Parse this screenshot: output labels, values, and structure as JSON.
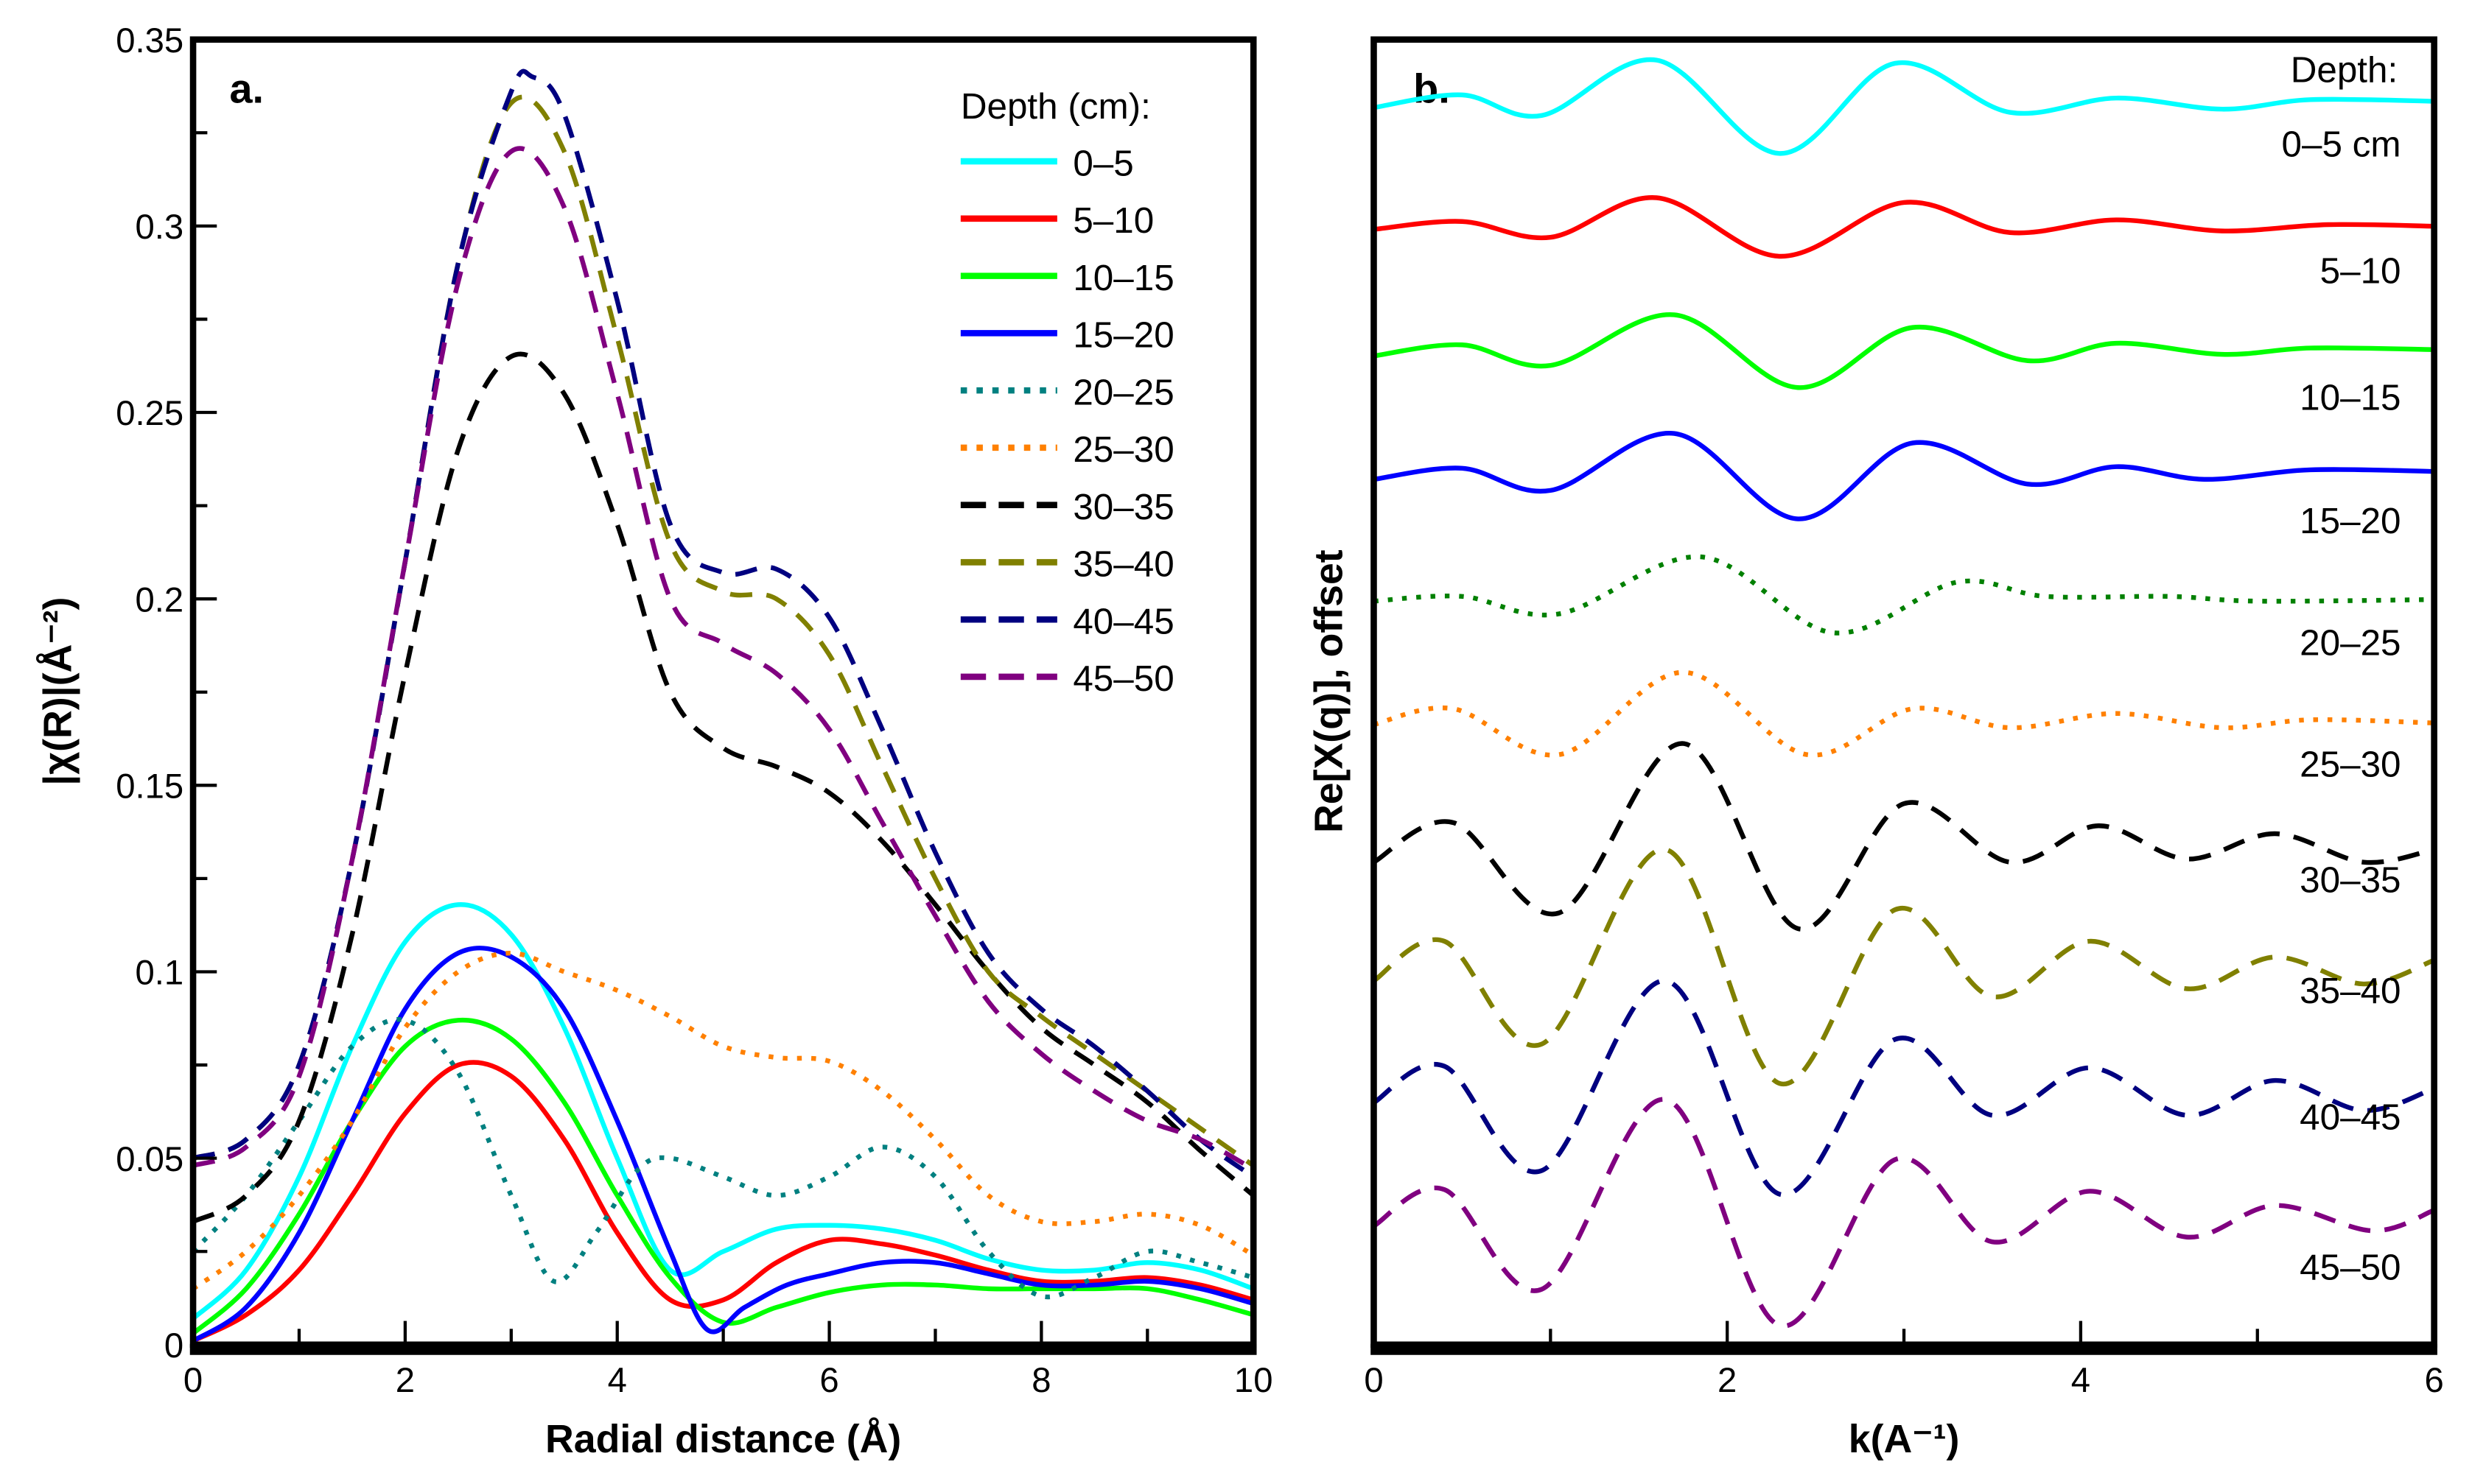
{
  "chart_data": [
    {
      "type": "line",
      "panel_label": "a.",
      "xlabel": "Radial distance (Å)",
      "ylabel": "|χ(R)|(Å⁻²)",
      "xlim": [
        0,
        10
      ],
      "ylim": [
        0,
        0.35
      ],
      "xticks": [
        "0",
        "2",
        "4",
        "6",
        "8",
        "10"
      ],
      "xtick_values": [
        0,
        2,
        4,
        6,
        8,
        10
      ],
      "yticks": [
        "0",
        "0.05",
        "0.1",
        "0.15",
        "0.2",
        "0.25",
        "0.3",
        "0.35"
      ],
      "ytick_values": [
        0,
        0.05,
        0.1,
        0.15,
        0.2,
        0.25,
        0.3,
        0.35
      ],
      "legend_title": "Depth (cm):",
      "legend_position": "top-right",
      "grid": false,
      "series": [
        {
          "name": "0–5",
          "color": "#00ffff",
          "style": "solid",
          "x": [
            0,
            0.5,
            1,
            1.5,
            2,
            2.5,
            3,
            3.5,
            4,
            4.5,
            5,
            5.5,
            6,
            6.5,
            7,
            7.5,
            8,
            8.5,
            9,
            9.5,
            10
          ],
          "y": [
            0.007,
            0.02,
            0.045,
            0.08,
            0.108,
            0.118,
            0.11,
            0.085,
            0.05,
            0.02,
            0.025,
            0.031,
            0.032,
            0.031,
            0.028,
            0.023,
            0.02,
            0.02,
            0.022,
            0.02,
            0.015
          ]
        },
        {
          "name": "5–10",
          "color": "#ff0000",
          "style": "solid",
          "x": [
            0,
            0.5,
            1,
            1.5,
            2,
            2.5,
            3,
            3.5,
            4,
            4.5,
            5,
            5.5,
            6,
            6.5,
            7,
            7.5,
            8,
            8.5,
            9,
            9.5,
            10
          ],
          "y": [
            0.001,
            0.008,
            0.02,
            0.04,
            0.062,
            0.075,
            0.072,
            0.055,
            0.03,
            0.012,
            0.012,
            0.022,
            0.028,
            0.027,
            0.024,
            0.02,
            0.017,
            0.017,
            0.018,
            0.016,
            0.012
          ]
        },
        {
          "name": "10–15",
          "color": "#00ff00",
          "style": "solid",
          "x": [
            0,
            0.5,
            1,
            1.5,
            2,
            2.5,
            3,
            3.5,
            4,
            4.5,
            5,
            5.5,
            6,
            6.5,
            7,
            7.5,
            8,
            8.5,
            9,
            9.5,
            10
          ],
          "y": [
            0.003,
            0.015,
            0.035,
            0.06,
            0.08,
            0.087,
            0.082,
            0.065,
            0.04,
            0.018,
            0.006,
            0.01,
            0.014,
            0.016,
            0.016,
            0.015,
            0.015,
            0.015,
            0.015,
            0.012,
            0.008
          ]
        },
        {
          "name": "15–20",
          "color": "#0000ff",
          "style": "solid",
          "x": [
            0,
            0.5,
            1,
            1.5,
            2,
            2.5,
            3,
            3.5,
            4,
            4.5,
            4.85,
            5.2,
            5.6,
            6,
            6.5,
            7,
            7.5,
            8,
            8.5,
            9,
            9.5,
            10
          ],
          "y": [
            0.001,
            0.01,
            0.03,
            0.06,
            0.09,
            0.105,
            0.104,
            0.09,
            0.06,
            0.025,
            0.004,
            0.01,
            0.016,
            0.019,
            0.022,
            0.022,
            0.019,
            0.016,
            0.016,
            0.017,
            0.015,
            0.011
          ]
        },
        {
          "name": "20–25",
          "color": "#008080",
          "style": "dotted",
          "x": [
            0,
            0.5,
            1,
            1.5,
            2,
            2.5,
            3,
            3.4,
            3.8,
            4.2,
            4.5,
            5,
            5.5,
            6,
            6.5,
            7,
            7.5,
            8,
            8.5,
            9,
            9.5,
            10
          ],
          "y": [
            0.025,
            0.04,
            0.06,
            0.08,
            0.087,
            0.073,
            0.04,
            0.017,
            0.03,
            0.047,
            0.05,
            0.045,
            0.04,
            0.045,
            0.053,
            0.045,
            0.025,
            0.013,
            0.018,
            0.025,
            0.022,
            0.018
          ]
        },
        {
          "name": "25–30",
          "color": "#ff8000",
          "style": "dotted",
          "x": [
            0,
            0.5,
            1,
            1.5,
            2,
            2.5,
            3,
            3.5,
            4,
            4.5,
            5,
            5.5,
            6,
            6.5,
            7,
            7.5,
            8,
            8.5,
            9,
            9.5,
            10
          ],
          "y": [
            0.015,
            0.025,
            0.04,
            0.06,
            0.085,
            0.1,
            0.105,
            0.1,
            0.095,
            0.088,
            0.08,
            0.077,
            0.076,
            0.068,
            0.055,
            0.04,
            0.033,
            0.033,
            0.035,
            0.032,
            0.024
          ]
        },
        {
          "name": "30–35",
          "color": "#000000",
          "style": "dashed",
          "x": [
            0,
            0.5,
            1,
            1.5,
            2,
            2.5,
            3,
            3.5,
            4,
            4.5,
            5,
            5.5,
            6,
            6.5,
            7,
            7.5,
            8,
            8.5,
            9,
            9.5,
            10
          ],
          "y": [
            0.033,
            0.04,
            0.06,
            0.11,
            0.18,
            0.24,
            0.265,
            0.255,
            0.22,
            0.175,
            0.16,
            0.155,
            0.148,
            0.135,
            0.118,
            0.1,
            0.085,
            0.075,
            0.065,
            0.052,
            0.04
          ]
        },
        {
          "name": "35–40",
          "color": "#808000",
          "style": "dashed",
          "x": [
            0,
            0.5,
            1,
            1.5,
            2,
            2.5,
            3,
            3.5,
            4,
            4.5,
            5,
            5.5,
            6,
            6.5,
            7,
            7.5,
            8,
            8.5,
            9,
            9.5,
            10
          ],
          "y": [
            0.05,
            0.055,
            0.075,
            0.13,
            0.21,
            0.29,
            0.333,
            0.32,
            0.27,
            0.215,
            0.202,
            0.2,
            0.185,
            0.155,
            0.125,
            0.1,
            0.088,
            0.078,
            0.068,
            0.058,
            0.048
          ]
        },
        {
          "name": "40–45",
          "color": "#000080",
          "style": "dashed",
          "x": [
            0,
            0.5,
            1,
            1.5,
            2,
            2.5,
            3,
            3.2,
            3.5,
            4,
            4.5,
            5,
            5.5,
            6,
            6.5,
            7,
            7.5,
            8,
            8.5,
            9,
            9.5,
            10
          ],
          "y": [
            0.05,
            0.055,
            0.075,
            0.13,
            0.21,
            0.29,
            0.336,
            0.34,
            0.33,
            0.28,
            0.22,
            0.207,
            0.208,
            0.195,
            0.165,
            0.132,
            0.105,
            0.09,
            0.08,
            0.068,
            0.055,
            0.045
          ]
        },
        {
          "name": "45–50",
          "color": "#800080",
          "style": "dashed",
          "x": [
            0,
            0.5,
            1,
            1.5,
            2,
            2.5,
            3,
            3.5,
            4,
            4.5,
            5,
            5.5,
            6,
            6.5,
            7,
            7.5,
            8,
            8.5,
            9,
            9.5,
            10
          ],
          "y": [
            0.048,
            0.053,
            0.072,
            0.13,
            0.21,
            0.285,
            0.32,
            0.305,
            0.255,
            0.2,
            0.188,
            0.18,
            0.165,
            0.14,
            0.115,
            0.092,
            0.078,
            0.068,
            0.06,
            0.055,
            0.047
          ]
        }
      ]
    },
    {
      "type": "line",
      "panel_label": "b.",
      "xlabel": "k(A⁻¹)",
      "ylabel": "Re[X(q)], offset",
      "xlim": [
        0,
        6
      ],
      "ylim": [
        0,
        82.5
      ],
      "xticks": [
        "0",
        "2",
        "4",
        "6"
      ],
      "xtick_values": [
        0,
        2,
        4,
        6
      ],
      "legend_title": "Depth:",
      "grid": false,
      "series": [
        {
          "name": "0–5 cm",
          "color": "#00ffff",
          "style": "solid",
          "offset": 78.5,
          "x": [
            0,
            0.5,
            0.95,
            1.6,
            2.3,
            2.95,
            3.6,
            4.2,
            4.8,
            5.3,
            6
          ],
          "y": [
            78.2,
            79,
            77.7,
            81.2,
            75.3,
            81,
            77.9,
            78.8,
            78.1,
            78.7,
            78.6
          ]
        },
        {
          "name": "5–10",
          "color": "#ff0000",
          "style": "solid",
          "offset": 70.5,
          "x": [
            0,
            0.5,
            1,
            1.6,
            2.3,
            3,
            3.6,
            4.2,
            4.8,
            5.4,
            6
          ],
          "y": [
            70.5,
            71,
            70,
            72.5,
            68.8,
            72.2,
            70.3,
            71.1,
            70.4,
            70.8,
            70.7
          ]
        },
        {
          "name": "10–15",
          "color": "#00ff00",
          "style": "solid",
          "offset": 62.5,
          "x": [
            0,
            0.5,
            1,
            1.7,
            2.4,
            3.05,
            3.7,
            4.2,
            4.8,
            5.3,
            6
          ],
          "y": [
            62.5,
            63.2,
            61.9,
            65.1,
            60.5,
            64.3,
            62.2,
            63.3,
            62.6,
            63,
            62.9
          ]
        },
        {
          "name": "15–20",
          "color": "#0000ff",
          "style": "solid",
          "offset": 54.7,
          "x": [
            0,
            0.5,
            1,
            1.7,
            2.4,
            3.05,
            3.7,
            4.2,
            4.7,
            5.3,
            6
          ],
          "y": [
            54.7,
            55.4,
            54,
            57.6,
            52.2,
            57,
            54.4,
            55.5,
            54.7,
            55.3,
            55.2
          ]
        },
        {
          "name": "20–25",
          "color": "#008000",
          "style": "dotted",
          "offset": 47,
          "x": [
            0,
            0.5,
            1.05,
            1.85,
            2.6,
            3.3,
            3.8,
            4.5,
            5,
            6
          ],
          "y": [
            47,
            47.3,
            46.2,
            49.8,
            45,
            48.2,
            47.3,
            47.3,
            47,
            47.1
          ]
        },
        {
          "name": "25–30",
          "color": "#ff8000",
          "style": "dotted",
          "offset": 39.3,
          "x": [
            0,
            0.45,
            1.05,
            1.75,
            2.45,
            3.05,
            3.6,
            4.2,
            4.8,
            5.3,
            6
          ],
          "y": [
            39.2,
            40.2,
            37.3,
            42.5,
            37.3,
            40.2,
            39,
            39.9,
            39,
            39.5,
            39.3
          ]
        },
        {
          "name": "30–35",
          "color": "#000000",
          "style": "dashed",
          "offset": 32,
          "x": [
            0,
            0.45,
            1.05,
            1.75,
            2.4,
            3.0,
            3.6,
            4.1,
            4.6,
            5.1,
            5.6,
            6
          ],
          "y": [
            30.5,
            33,
            27.3,
            38,
            26.3,
            34.2,
            30.5,
            32.8,
            30.7,
            32.3,
            30.5,
            31.3
          ]
        },
        {
          "name": "35–40",
          "color": "#808000",
          "style": "dashed",
          "offset": 25,
          "x": [
            0,
            0.4,
            0.95,
            1.65,
            2.3,
            2.95,
            3.5,
            4.05,
            4.6,
            5.1,
            5.6,
            6
          ],
          "y": [
            23,
            25.5,
            19,
            31.3,
            16.5,
            27.5,
            22,
            25.5,
            22.5,
            24.5,
            22.8,
            24.3
          ]
        },
        {
          "name": "40–45",
          "color": "#000080",
          "style": "dashed",
          "offset": 17,
          "x": [
            0,
            0.4,
            0.95,
            1.65,
            2.3,
            2.95,
            3.5,
            4.05,
            4.6,
            5.1,
            5.6,
            6
          ],
          "y": [
            15.3,
            17.6,
            11,
            23,
            9.5,
            19.3,
            14.5,
            17.5,
            14.5,
            16.7,
            14.8,
            16.2
          ]
        },
        {
          "name": "45–50",
          "color": "#800080",
          "style": "dashed",
          "offset": 7.5,
          "x": [
            0,
            0.4,
            0.95,
            1.65,
            2.3,
            2.95,
            3.5,
            4.05,
            4.6,
            5.1,
            5.65,
            6
          ],
          "y": [
            7.5,
            9.8,
            3.5,
            15.5,
            1.2,
            11.7,
            6.5,
            9.7,
            6.8,
            8.8,
            7.2,
            8.5
          ]
        }
      ]
    }
  ]
}
